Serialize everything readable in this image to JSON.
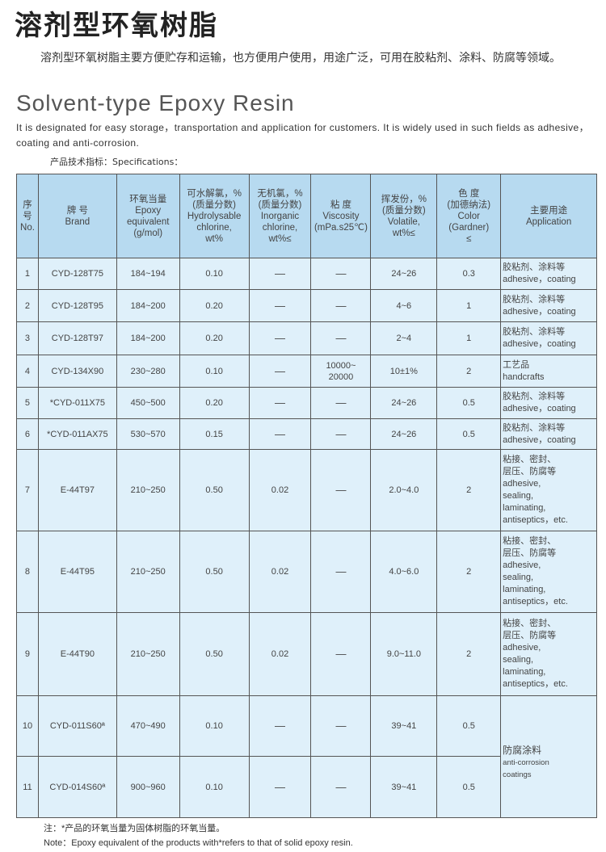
{
  "title": "溶剂型环氧树脂",
  "intro_zh": "溶剂型环氧树脂主要方便贮存和运输，也方便用户使用，用途广泛，可用在胶粘剂、涂料、防腐等领域。",
  "title_en": "Solvent-type Epoxy Resin",
  "intro_en": "It is designated for easy storage，transportation and application for customers.  It is widely used in such fields as adhesive，coating and anti-corrosion.",
  "spec_label": "产品技术指标：Specifications：",
  "headers": [
    [
      "序",
      "号",
      "No."
    ],
    [
      "牌 号",
      "Brand"
    ],
    [
      "环氧当量",
      "Epoxy",
      "equivalent",
      "(g/mol)"
    ],
    [
      "可水解氯，%",
      "(质量分数)",
      "Hydrolysable",
      "chlorine,",
      "wt%"
    ],
    [
      "无机氯，%",
      "(质量分数)",
      "Inorganic",
      "chlorine,",
      "wt%≤"
    ],
    [
      "粘 度",
      "Viscosity",
      "(mPa.s25℃)"
    ],
    [
      "挥发份，%",
      "(质量分数)",
      "Volatile,",
      "wt%≤"
    ],
    [
      "色 度",
      "(加德纳法)",
      "Color",
      "(Gardner)",
      "≤"
    ],
    [
      "主要用途",
      "Application"
    ]
  ],
  "rows": [
    {
      "no": "1",
      "brand": "CYD-128T75",
      "epoxy": "184~194",
      "hyd": "0.10",
      "inorg": "—",
      "visc": "—",
      "vol": "24~26",
      "color": "0.3",
      "app": [
        "胶粘剂、涂料等",
        "adhesive，coating"
      ]
    },
    {
      "no": "2",
      "brand": "CYD-128T95",
      "epoxy": "184~200",
      "hyd": "0.20",
      "inorg": "—",
      "visc": "—",
      "vol": "4~6",
      "color": "1",
      "app": [
        "胶粘剂、涂料等",
        "adhesive，coating"
      ]
    },
    {
      "no": "3",
      "brand": "CYD-128T97",
      "epoxy": "184~200",
      "hyd": "0.20",
      "inorg": "—",
      "visc": "—",
      "vol": "2~4",
      "color": "1",
      "app": [
        "胶粘剂、涂料等",
        "adhesive，coating"
      ]
    },
    {
      "no": "4",
      "brand": "CYD-134X90",
      "epoxy": "230~280",
      "hyd": "0.10",
      "inorg": "—",
      "visc": "10000~\n20000",
      "vol": "10±1%",
      "color": "2",
      "app": [
        "工艺品",
        "handcrafts"
      ]
    },
    {
      "no": "5",
      "brand": "*CYD-011X75",
      "epoxy": "450~500",
      "hyd": "0.20",
      "inorg": "—",
      "visc": "—",
      "vol": "24~26",
      "color": "0.5",
      "app": [
        "胶粘剂、涂料等",
        "adhesive，coating"
      ]
    },
    {
      "no": "6",
      "brand": "*CYD-011AX75",
      "epoxy": "530~570",
      "hyd": "0.15",
      "inorg": "—",
      "visc": "—",
      "vol": "24~26",
      "color": "0.5",
      "app": [
        "胶粘剂、涂料等",
        "adhesive，coating"
      ]
    },
    {
      "no": "7",
      "brand": "E-44T97",
      "epoxy": "210~250",
      "hyd": "0.50",
      "inorg": "0.02",
      "visc": "—",
      "vol": "2.0~4.0",
      "color": "2",
      "app": [
        "粘接、密封、",
        "层压、防腐等",
        "adhesive,",
        "sealing,",
        "laminating,",
        "antiseptics，etc."
      ]
    },
    {
      "no": "8",
      "brand": "E-44T95",
      "epoxy": "210~250",
      "hyd": "0.50",
      "inorg": "0.02",
      "visc": "—",
      "vol": "4.0~6.0",
      "color": "2",
      "app": [
        "粘接、密封、",
        "层压、防腐等",
        "adhesive,",
        "sealing,",
        "laminating,",
        "antiseptics，etc."
      ]
    },
    {
      "no": "9",
      "brand": "E-44T90",
      "epoxy": "210~250",
      "hyd": "0.50",
      "inorg": "0.02",
      "visc": "—",
      "vol": "9.0~11.0",
      "color": "2",
      "app": [
        "粘接、密封、",
        "层压、防腐等",
        "adhesive,",
        "sealing,",
        "laminating,",
        "antiseptics，etc."
      ]
    },
    {
      "no": "10",
      "brand": "CYD-011S60ª",
      "epoxy": "470~490",
      "hyd": "0.10",
      "inorg": "—",
      "visc": "—",
      "vol": "39~41",
      "color": "0.5",
      "app": [
        "防腐涂料",
        "anti-corrosion",
        "coatings"
      ]
    },
    {
      "no": "11",
      "brand": "CYD-014S60ª",
      "epoxy": "900~960",
      "hyd": "0.10",
      "inorg": "—",
      "visc": "—",
      "vol": "39~41",
      "color": "0.5"
    }
  ],
  "notes": [
    "注：*产品的环氧当量为固体树脂的环氧当量。",
    "Note：Epoxy equivalent of the products with*refers to that of solid epoxy resin."
  ]
}
